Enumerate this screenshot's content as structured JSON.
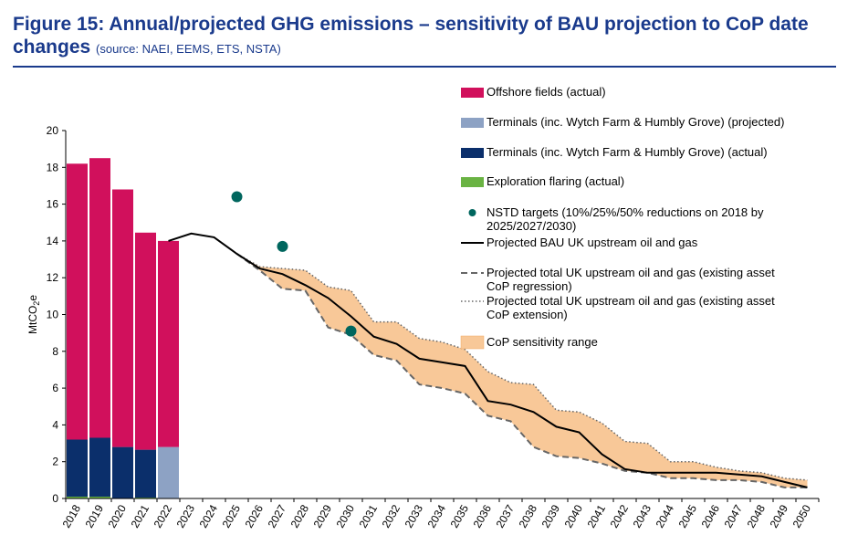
{
  "header": {
    "title": "Figure 15: Annual/projected GHG emissions – sensitivity of BAU projection to CoP date changes",
    "source": "(source: NAEI, EEMS, ETS, NSTA)"
  },
  "colors": {
    "offshore": "#d1105c",
    "terminals_projected": "#8da2c4",
    "terminals_actual": "#0b2f6b",
    "exploration": "#6ab343",
    "nstd": "#00665e",
    "bau": "#000000",
    "regression": "#666666",
    "extension": "#666666",
    "range_fill": "#f8c898",
    "range_edge": "#f2a860",
    "title": "#1a3a8c"
  },
  "chart_data": {
    "type": "bar",
    "ylabel": "MtCO2e",
    "ylim": [
      0,
      20
    ],
    "yticks": [
      0,
      2,
      4,
      6,
      8,
      10,
      12,
      14,
      16,
      18,
      20
    ],
    "categories": [
      "2018",
      "2019",
      "2020",
      "2021",
      "2022",
      "2023",
      "2024",
      "2025",
      "2026",
      "2027",
      "2028",
      "2029",
      "2030",
      "2031",
      "2032",
      "2033",
      "2034",
      "2035",
      "2036",
      "2037",
      "2038",
      "2039",
      "2040",
      "2041",
      "2042",
      "2043",
      "2044",
      "2045",
      "2046",
      "2047",
      "2048",
      "2049",
      "2050"
    ],
    "legend": [
      {
        "key": "offshore",
        "label": "Offshore fields (actual)",
        "kind": "bar"
      },
      {
        "key": "terminals_projected",
        "label": "Terminals (inc. Wytch Farm & Humbly Grove) (projected)",
        "kind": "bar"
      },
      {
        "key": "terminals_actual",
        "label": "Terminals (inc. Wytch Farm & Humbly Grove) (actual)",
        "kind": "bar"
      },
      {
        "key": "exploration",
        "label": "Exploration flaring (actual)",
        "kind": "bar"
      },
      {
        "key": "nstd",
        "label": [
          "NSTD targets (10%/25%/50% reductions on 2018 by",
          "2025/2027/2030)"
        ],
        "kind": "dot"
      },
      {
        "key": "bau",
        "label": "Projected BAU UK upstream oil and gas",
        "kind": "line"
      },
      {
        "key": "regression",
        "label": [
          "Projected total UK upstream oil and gas (existing asset",
          "CoP regression)"
        ],
        "kind": "dash"
      },
      {
        "key": "extension",
        "label": [
          "Projected total UK upstream oil and gas (existing asset",
          "CoP extension)"
        ],
        "kind": "dot-line"
      },
      {
        "key": "range_fill",
        "label": "CoP sensitivity range",
        "kind": "area"
      }
    ],
    "bars": [
      {
        "year": "2018",
        "exploration": 0.1,
        "terminals_actual": 3.1,
        "terminals_projected": 0,
        "offshore": 15.0
      },
      {
        "year": "2019",
        "exploration": 0.1,
        "terminals_actual": 3.2,
        "terminals_projected": 0,
        "offshore": 15.2
      },
      {
        "year": "2020",
        "exploration": 0.0,
        "terminals_actual": 2.8,
        "terminals_projected": 0,
        "offshore": 14.0
      },
      {
        "year": "2021",
        "exploration": 0.05,
        "terminals_actual": 2.6,
        "terminals_projected": 0,
        "offshore": 11.8
      },
      {
        "year": "2022",
        "exploration": 0.0,
        "terminals_actual": 0,
        "terminals_projected": 2.8,
        "offshore": 11.2
      }
    ],
    "nstd_targets": [
      {
        "x": "2025",
        "y": 16.4
      },
      {
        "x": "2027",
        "y": 13.7
      },
      {
        "x": "2030",
        "y": 9.1
      }
    ],
    "bau": [
      [
        "2022",
        14.0
      ],
      [
        "2023",
        14.4
      ],
      [
        "2024",
        14.2
      ],
      [
        "2025",
        13.3
      ],
      [
        "2026",
        12.5
      ],
      [
        "2027",
        12.2
      ],
      [
        "2028",
        11.6
      ],
      [
        "2029",
        10.9
      ],
      [
        "2030",
        9.9
      ],
      [
        "2031",
        8.8
      ],
      [
        "2032",
        8.4
      ],
      [
        "2033",
        7.6
      ],
      [
        "2034",
        7.4
      ],
      [
        "2035",
        7.2
      ],
      [
        "2036",
        5.3
      ],
      [
        "2037",
        5.1
      ],
      [
        "2038",
        4.7
      ],
      [
        "2039",
        3.9
      ],
      [
        "2040",
        3.6
      ],
      [
        "2041",
        2.4
      ],
      [
        "2042",
        1.6
      ],
      [
        "2043",
        1.4
      ],
      [
        "2044",
        1.4
      ],
      [
        "2045",
        1.4
      ],
      [
        "2046",
        1.4
      ],
      [
        "2047",
        1.3
      ],
      [
        "2048",
        1.2
      ],
      [
        "2049",
        0.9
      ],
      [
        "2050",
        0.6
      ]
    ],
    "regression": [
      [
        "2025",
        13.3
      ],
      [
        "2026",
        12.4
      ],
      [
        "2027",
        11.4
      ],
      [
        "2028",
        11.3
      ],
      [
        "2029",
        9.3
      ],
      [
        "2030",
        8.9
      ],
      [
        "2031",
        7.8
      ],
      [
        "2032",
        7.5
      ],
      [
        "2033",
        6.2
      ],
      [
        "2034",
        6.0
      ],
      [
        "2035",
        5.7
      ],
      [
        "2036",
        4.5
      ],
      [
        "2037",
        4.2
      ],
      [
        "2038",
        2.8
      ],
      [
        "2039",
        2.3
      ],
      [
        "2040",
        2.2
      ],
      [
        "2041",
        1.9
      ],
      [
        "2042",
        1.5
      ],
      [
        "2043",
        1.4
      ],
      [
        "2044",
        1.1
      ],
      [
        "2045",
        1.1
      ],
      [
        "2046",
        1.0
      ],
      [
        "2047",
        1.0
      ],
      [
        "2048",
        0.9
      ],
      [
        "2049",
        0.6
      ],
      [
        "2050",
        0.6
      ]
    ],
    "extension": [
      [
        "2025",
        13.3
      ],
      [
        "2026",
        12.6
      ],
      [
        "2027",
        12.5
      ],
      [
        "2028",
        12.4
      ],
      [
        "2029",
        11.5
      ],
      [
        "2030",
        11.3
      ],
      [
        "2031",
        9.6
      ],
      [
        "2032",
        9.6
      ],
      [
        "2033",
        8.7
      ],
      [
        "2034",
        8.5
      ],
      [
        "2035",
        8.1
      ],
      [
        "2036",
        6.9
      ],
      [
        "2037",
        6.3
      ],
      [
        "2038",
        6.2
      ],
      [
        "2039",
        4.8
      ],
      [
        "2040",
        4.7
      ],
      [
        "2041",
        4.1
      ],
      [
        "2042",
        3.1
      ],
      [
        "2043",
        3.0
      ],
      [
        "2044",
        2.0
      ],
      [
        "2045",
        2.0
      ],
      [
        "2046",
        1.7
      ],
      [
        "2047",
        1.5
      ],
      [
        "2048",
        1.4
      ],
      [
        "2049",
        1.1
      ],
      [
        "2050",
        1.0
      ]
    ]
  }
}
